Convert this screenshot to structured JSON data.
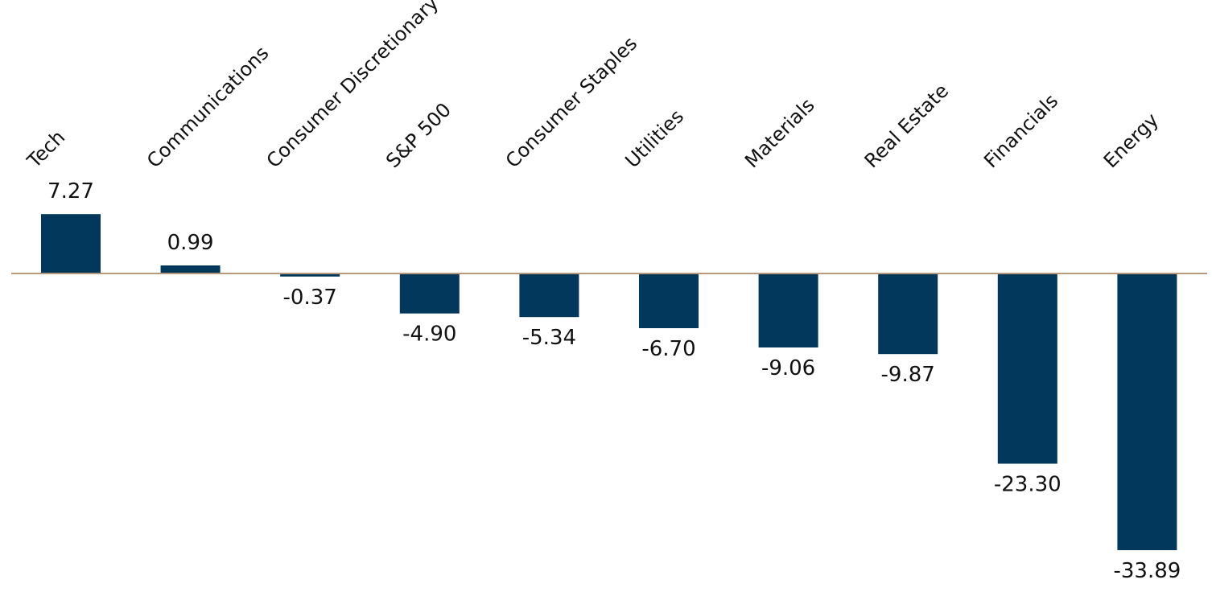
{
  "chart_data": {
    "type": "bar",
    "categories": [
      "Tech",
      "Communications",
      "Consumer Discretionary",
      "S&P 500",
      "Consumer Staples",
      "Utilities",
      "Materials",
      "Real Estate",
      "Financials",
      "Energy"
    ],
    "values": [
      7.27,
      0.99,
      -0.37,
      -4.9,
      -5.34,
      -6.7,
      -9.06,
      -9.87,
      -23.3,
      -33.89
    ],
    "value_labels": [
      "7.27",
      "0.99",
      "-0.37",
      "-4.90",
      "-5.34",
      "-6.70",
      "-9.06",
      "-9.87",
      "-23.30",
      "-33.89"
    ],
    "title": "",
    "xlabel": "",
    "ylabel": "",
    "category_label_position": "top, rotated -45°",
    "data_labels": true,
    "grid": false,
    "legend": "none",
    "colors": {
      "bar": "#02385c",
      "zero_line": "#b79a7e",
      "text": "#111111"
    }
  }
}
